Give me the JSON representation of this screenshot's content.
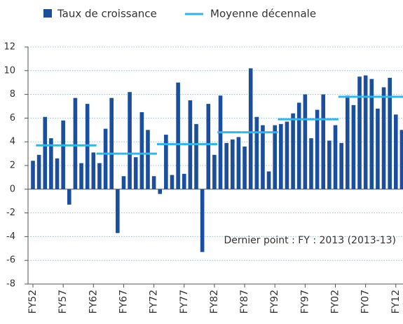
{
  "chart_data": {
    "type": "bar",
    "annotation": "Dernier point : FY : 2013 (2013-13)",
    "categories": [
      "FY52",
      null,
      null,
      null,
      null,
      "FY57",
      null,
      null,
      null,
      null,
      "FY62",
      null,
      null,
      null,
      null,
      "FY67",
      null,
      null,
      null,
      null,
      "FY72",
      null,
      null,
      null,
      null,
      "FY77",
      null,
      null,
      null,
      null,
      "FY82",
      null,
      null,
      null,
      null,
      "FY87",
      null,
      null,
      null,
      null,
      "FY92",
      null,
      null,
      null,
      null,
      "FY97",
      null,
      null,
      null,
      null,
      "FY02",
      null,
      null,
      null,
      null,
      "FY07",
      null,
      null,
      null,
      null,
      "FY12",
      null
    ],
    "series": [
      {
        "name": "Taux de croissance",
        "color": "#1b4f9e",
        "values": [
          2.4,
          2.9,
          6.1,
          4.3,
          2.6,
          5.8,
          -1.3,
          7.7,
          2.2,
          7.2,
          3.1,
          2.2,
          5.1,
          7.7,
          -3.7,
          1.1,
          8.2,
          2.7,
          6.5,
          5.0,
          1.1,
          -0.4,
          4.6,
          1.2,
          9.0,
          1.3,
          7.5,
          5.5,
          -5.3,
          7.2,
          2.9,
          7.9,
          3.9,
          4.2,
          4.4,
          3.6,
          10.2,
          6.1,
          5.4,
          1.5,
          5.4,
          5.5,
          5.7,
          6.4,
          7.3,
          8.0,
          4.3,
          6.7,
          8.0,
          4.1,
          5.4,
          3.9,
          7.9,
          7.1,
          9.5,
          9.6,
          9.3,
          6.8,
          8.6,
          9.4,
          6.3,
          5.0
        ]
      },
      {
        "name": "Moyenne décennale",
        "color": "#33b4e4",
        "values": [
          null,
          3.7,
          3.7,
          3.7,
          3.7,
          3.7,
          3.7,
          3.7,
          3.7,
          3.7,
          3.7,
          3.0,
          3.0,
          3.0,
          3.0,
          3.0,
          3.0,
          3.0,
          3.0,
          3.0,
          3.0,
          3.8,
          3.8,
          3.8,
          3.8,
          3.8,
          3.8,
          3.8,
          3.8,
          3.8,
          3.8,
          4.8,
          4.8,
          4.8,
          4.8,
          4.8,
          4.8,
          4.8,
          4.8,
          4.8,
          4.8,
          5.9,
          5.9,
          5.9,
          5.9,
          5.9,
          5.9,
          5.9,
          5.9,
          5.9,
          5.9,
          7.8,
          7.8,
          7.8,
          7.8,
          7.8,
          7.8,
          7.8,
          7.8,
          7.8,
          7.8,
          7.8
        ]
      }
    ],
    "ylim": [
      -8,
      12
    ],
    "yticks": [
      -8,
      -6,
      -4,
      -2,
      0,
      2,
      4,
      6,
      8,
      10,
      12
    ],
    "grid": true
  }
}
